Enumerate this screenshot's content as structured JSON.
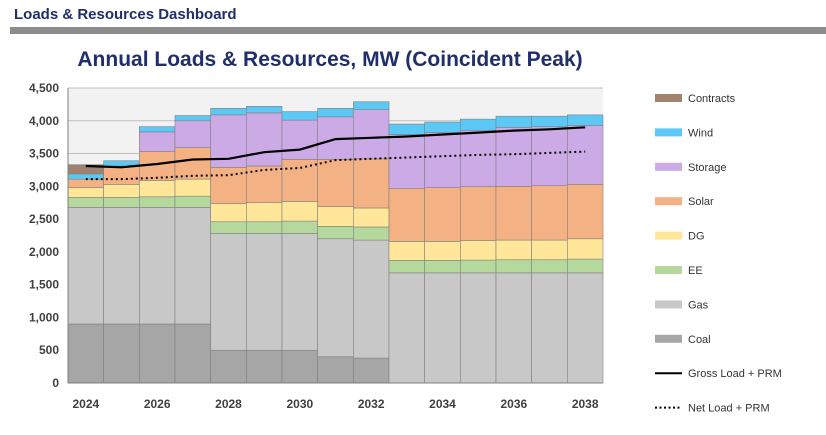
{
  "dashboard": {
    "title": "Loads & Resources Dashboard"
  },
  "chart_data": {
    "type": "bar",
    "stacked": true,
    "title": "Annual Loads & Resources, MW (Coincident Peak)",
    "xlabel": "",
    "ylabel": "",
    "ylim": [
      0,
      4500
    ],
    "y_ticks": [
      0,
      500,
      1000,
      1500,
      2000,
      2500,
      3000,
      3500,
      4000,
      4500
    ],
    "y_tick_labels": [
      "0",
      "500",
      "1,000",
      "1,500",
      "2,000",
      "2,500",
      "3,000",
      "3,500",
      "4,000",
      "4,500"
    ],
    "grid": true,
    "categories": [
      "2024",
      "2025",
      "2026",
      "2027",
      "2028",
      "2029",
      "2030",
      "2031",
      "2032",
      "2033",
      "2034",
      "2035",
      "2036",
      "2037",
      "2038"
    ],
    "x_tick_labels": [
      "2024",
      "",
      "2026",
      "",
      "2028",
      "",
      "2030",
      "",
      "2032",
      "",
      "2034",
      "",
      "2036",
      "",
      "2038"
    ],
    "series": [
      {
        "name": "Coal",
        "color": "#a6a6a6",
        "values": [
          900,
          900,
          900,
          900,
          500,
          500,
          500,
          400,
          380,
          0,
          0,
          0,
          0,
          0,
          0
        ]
      },
      {
        "name": "Gas",
        "color": "#c8c8c8",
        "values": [
          1780,
          1780,
          1780,
          1780,
          1780,
          1780,
          1780,
          1800,
          1800,
          1680,
          1680,
          1680,
          1680,
          1680,
          1680
        ]
      },
      {
        "name": "EE",
        "color": "#b5d99c",
        "values": [
          150,
          150,
          160,
          170,
          180,
          180,
          190,
          190,
          200,
          190,
          190,
          195,
          200,
          200,
          210
        ]
      },
      {
        "name": "DG",
        "color": "#ffe699",
        "values": [
          150,
          200,
          250,
          260,
          280,
          290,
          300,
          300,
          290,
          290,
          290,
          300,
          300,
          300,
          310
        ]
      },
      {
        "name": "Solar",
        "color": "#f4b183",
        "values": [
          130,
          280,
          440,
          480,
          550,
          560,
          640,
          720,
          750,
          810,
          820,
          820,
          820,
          830,
          830
        ]
      },
      {
        "name": "Storage",
        "color": "#ccaae6",
        "values": [
          0,
          0,
          300,
          410,
          800,
          810,
          600,
          650,
          750,
          820,
          840,
          860,
          900,
          900,
          900
        ]
      },
      {
        "name": "Wind",
        "color": "#5bc8f5",
        "values": [
          80,
          80,
          80,
          80,
          100,
          100,
          130,
          130,
          120,
          160,
          160,
          170,
          170,
          160,
          160
        ]
      },
      {
        "name": "Contracts",
        "color": "#a0826d",
        "values": [
          140,
          0,
          0,
          0,
          0,
          0,
          0,
          0,
          0,
          0,
          0,
          0,
          0,
          0,
          0
        ]
      }
    ],
    "lines": [
      {
        "name": "Gross Load + PRM",
        "color": "#000000",
        "style": "solid",
        "values": [
          3310,
          3290,
          3340,
          3410,
          3420,
          3520,
          3560,
          3720,
          3740,
          3760,
          3790,
          3820,
          3850,
          3870,
          3900
        ]
      },
      {
        "name": "Net Load + PRM",
        "color": "#000000",
        "style": "dotted",
        "values": [
          3110,
          3110,
          3130,
          3160,
          3170,
          3250,
          3280,
          3400,
          3420,
          3440,
          3460,
          3480,
          3490,
          3510,
          3530
        ]
      }
    ],
    "legend": [
      "Contracts",
      "Wind",
      "Storage",
      "Solar",
      "DG",
      "EE",
      "Gas",
      "Coal",
      "Gross Load + PRM",
      "Net Load + PRM"
    ],
    "legend_position": "right"
  }
}
